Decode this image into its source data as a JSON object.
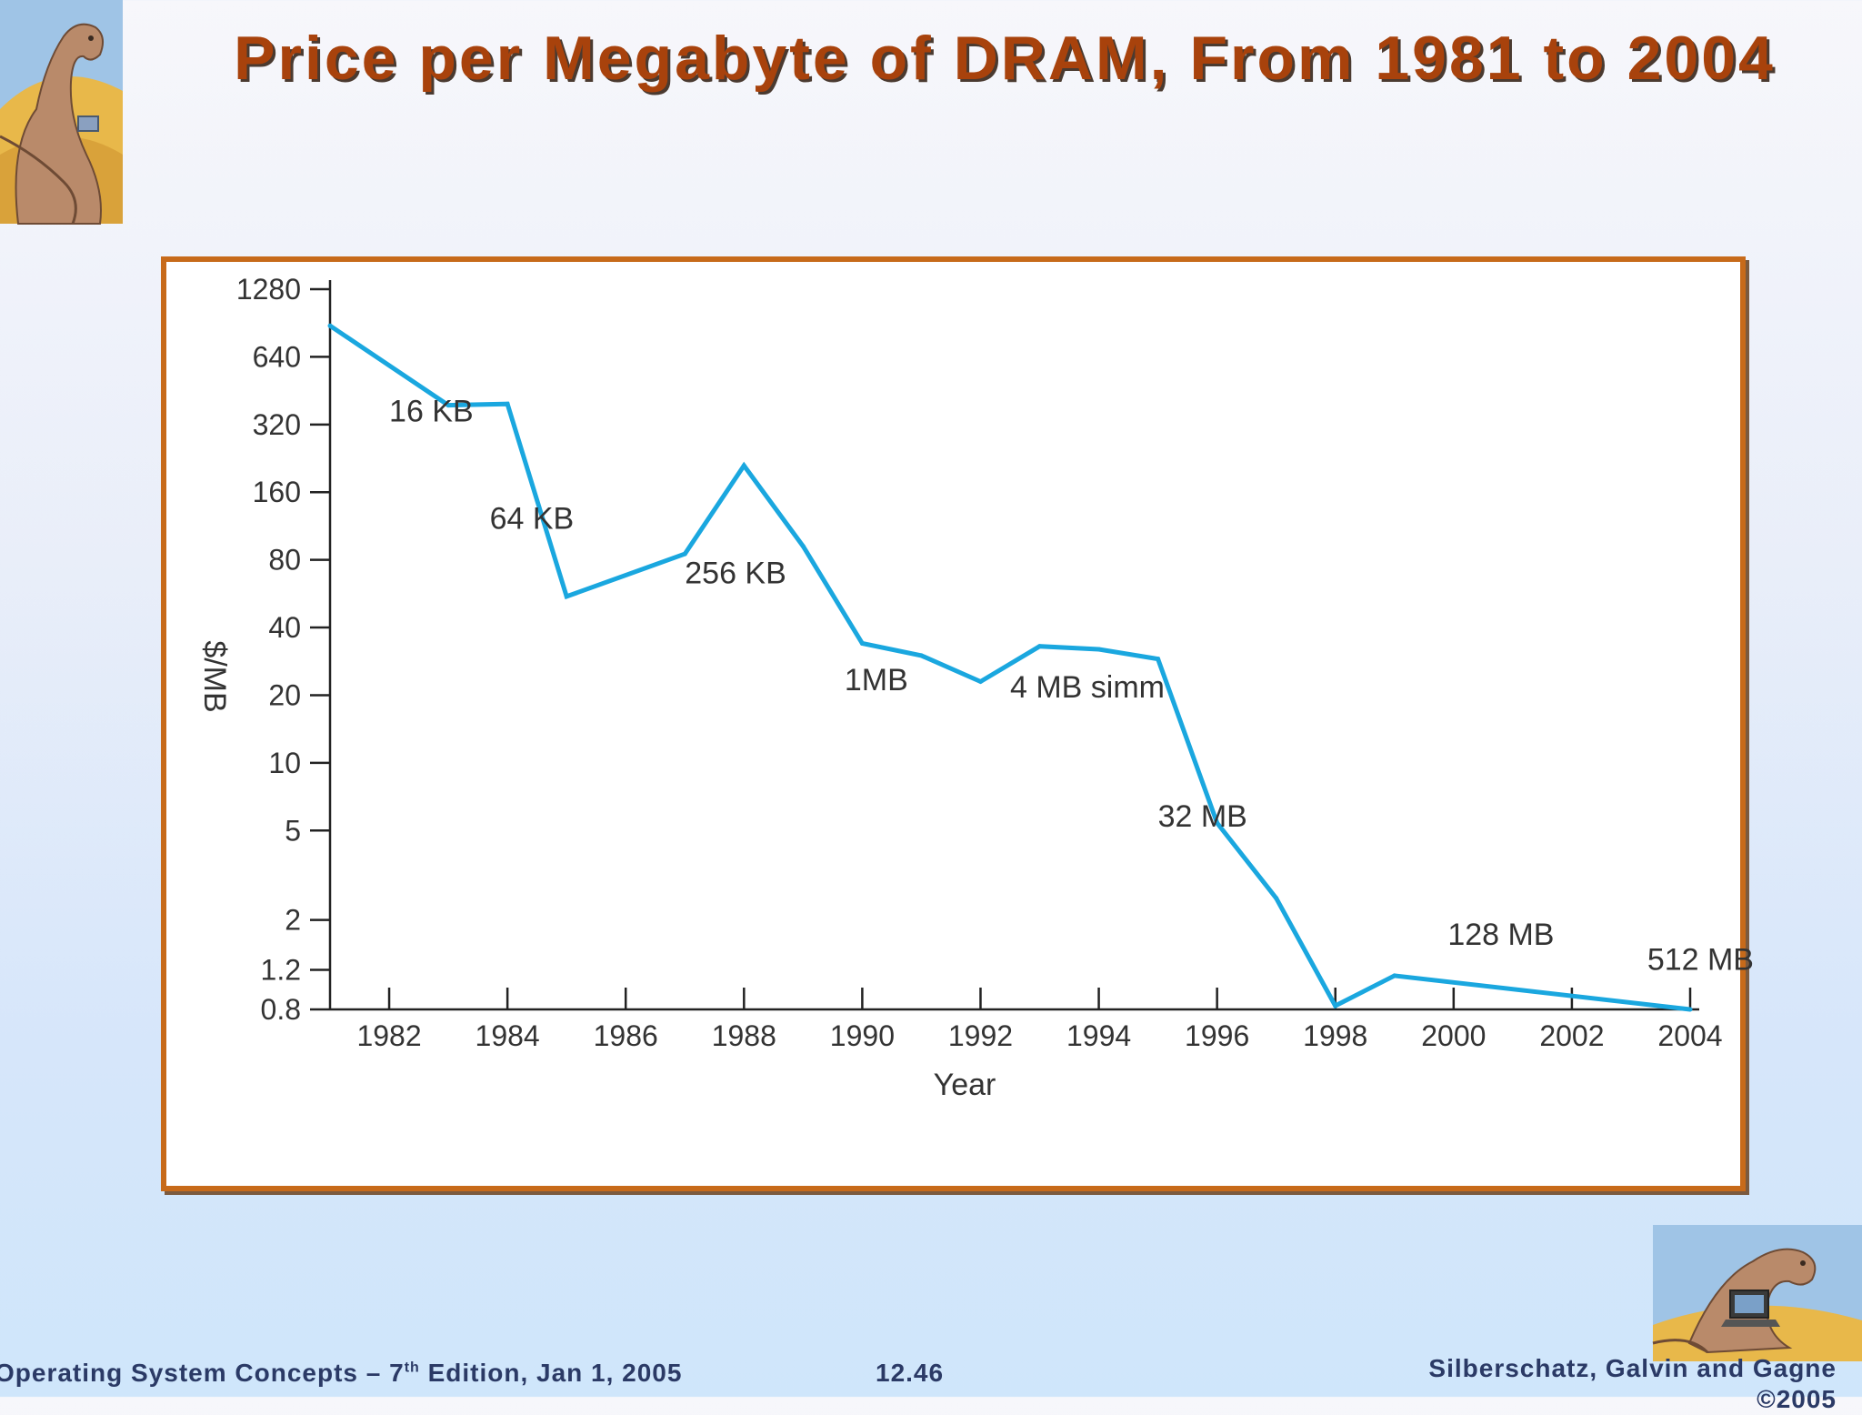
{
  "slide": {
    "title": "Price per Megabyte of DRAM, From 1981 to 2004",
    "footer_left_prefix": "Operating System Concepts – 7",
    "footer_left_sup": "th",
    "footer_left_suffix": " Edition, Jan 1, 2005",
    "footer_page": "12.46",
    "footer_right_line1": "Silberschatz, Galvin and Gagne",
    "footer_right_line2": "©2005"
  },
  "chart_data": {
    "type": "line",
    "title": "",
    "xlabel": "Year",
    "ylabel": "$/MB",
    "yscale": "log2",
    "ylim": [
      0.8,
      1280
    ],
    "xlim": [
      1981,
      2004
    ],
    "yticks": [
      1280,
      640,
      320,
      160,
      80,
      40,
      20,
      10,
      5,
      2,
      1.2,
      0.8
    ],
    "ytick_labels": [
      "1280",
      "640",
      "320",
      "160",
      "80",
      "40",
      "20",
      "10",
      "5",
      "2",
      "1.2",
      "0.8"
    ],
    "xticks": [
      1982,
      1984,
      1986,
      1988,
      1990,
      1992,
      1994,
      1996,
      1998,
      2000,
      2002,
      2004
    ],
    "xtick_labels": [
      "1982",
      "1984",
      "1986",
      "1988",
      "1990",
      "1992",
      "1994",
      "1996",
      "1998",
      "2000",
      "2002",
      "2004"
    ],
    "line_color": "#1aa7df",
    "series": [
      {
        "x": [
          1981,
          1983,
          1984,
          1985,
          1987,
          1988,
          1989,
          1990,
          1991,
          1992,
          1993,
          1994,
          1995,
          1996,
          1997,
          1998,
          1999,
          2004
        ],
        "values": [
          880,
          390,
          395,
          55,
          85,
          210,
          92,
          34,
          30,
          23,
          33,
          32,
          29,
          5.4,
          2.5,
          0.83,
          1.13,
          0.8
        ]
      }
    ],
    "annotations": [
      {
        "text": "16 KB",
        "x": 1982.0,
        "y": 330
      },
      {
        "text": "64 KB",
        "x": 1983.7,
        "y": 110
      },
      {
        "text": "256 KB",
        "x": 1987.0,
        "y": 63
      },
      {
        "text": "1MB",
        "x": 1989.7,
        "y": 21
      },
      {
        "text": "4 MB simm",
        "x": 1992.5,
        "y": 19.5
      },
      {
        "text": "32 MB",
        "x": 1995.0,
        "y": 5.2
      },
      {
        "text": "128 MB",
        "x": 1999.9,
        "y": 1.55
      },
      {
        "text": "512 MB",
        "x": 2004.0,
        "y": 1.2
      }
    ]
  }
}
